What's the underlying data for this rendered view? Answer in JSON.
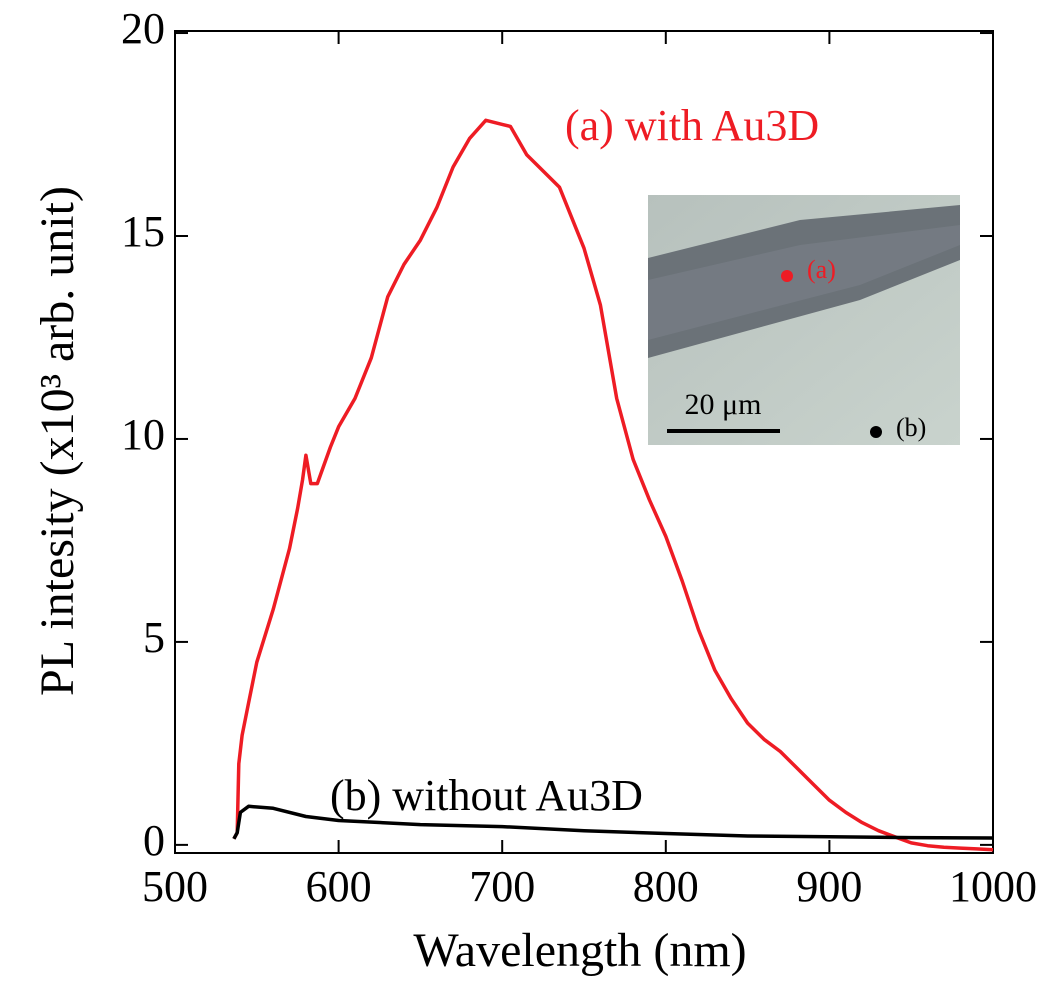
{
  "chart_data": {
    "type": "line",
    "xlabel": "Wavelength (nm)",
    "ylabel": "PL intesity (x10³ arb. unit)",
    "xlim": [
      500,
      1000
    ],
    "xticks": [
      500,
      600,
      700,
      800,
      900,
      1000
    ],
    "ylim": [
      -0.2,
      20.05
    ],
    "yticks": [
      0,
      5,
      10,
      15,
      20
    ],
    "series": [
      {
        "name": "(a) with Au3D",
        "color": "#ee1c24",
        "x": [
          536,
          538,
          539,
          541,
          545,
          550,
          560,
          570,
          575,
          578,
          580,
          583,
          587,
          595,
          600,
          610,
          620,
          630,
          640,
          650,
          660,
          670,
          680,
          690,
          700,
          705,
          715,
          725,
          735,
          750,
          760,
          770,
          780,
          790,
          800,
          810,
          820,
          830,
          840,
          850,
          860,
          870,
          880,
          890,
          900,
          910,
          920,
          930,
          940,
          950,
          960,
          970,
          980,
          990,
          1000
        ],
        "values": [
          0.15,
          0.3,
          2.0,
          2.7,
          3.5,
          4.5,
          5.8,
          7.3,
          8.3,
          9.0,
          9.6,
          8.9,
          8.9,
          9.8,
          10.3,
          11.0,
          12.0,
          13.5,
          14.3,
          14.9,
          15.7,
          16.7,
          17.4,
          17.85,
          17.75,
          17.7,
          17.0,
          16.6,
          16.2,
          14.7,
          13.3,
          11.0,
          9.5,
          8.5,
          7.6,
          6.5,
          5.3,
          4.3,
          3.6,
          3.0,
          2.6,
          2.3,
          1.9,
          1.5,
          1.1,
          0.8,
          0.55,
          0.35,
          0.2,
          0.05,
          -0.02,
          -0.06,
          -0.08,
          -0.1,
          -0.12
        ]
      },
      {
        "name": "(b) without Au3D",
        "color": "#000000",
        "x": [
          536,
          538,
          540,
          545,
          560,
          580,
          600,
          650,
          700,
          750,
          800,
          850,
          900,
          950,
          1000
        ],
        "values": [
          0.15,
          0.3,
          0.8,
          0.95,
          0.9,
          0.7,
          0.6,
          0.5,
          0.45,
          0.35,
          0.28,
          0.22,
          0.2,
          0.18,
          0.17
        ]
      }
    ],
    "annotations": [
      "(a)",
      "(b)",
      "20 μm"
    ]
  }
}
